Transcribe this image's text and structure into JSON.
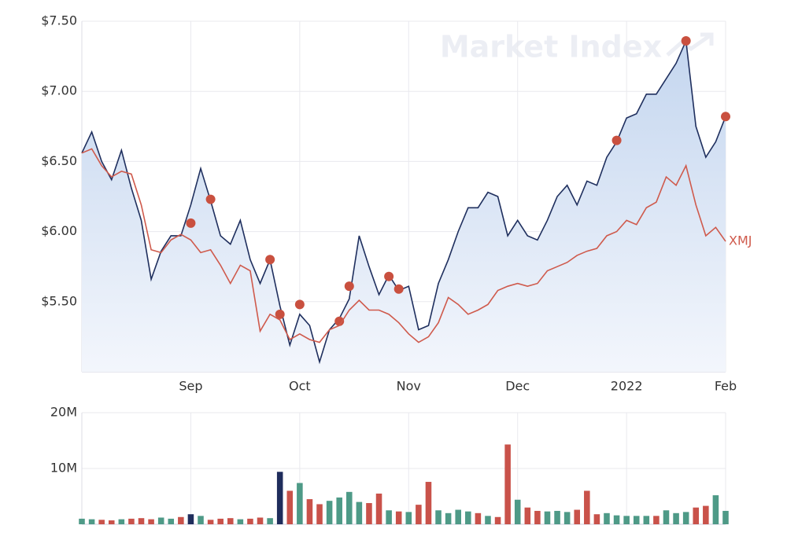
{
  "chart_data": [
    {
      "type": "line",
      "watermark": "Market Index",
      "categories": [
        null,
        null,
        null,
        null,
        null,
        null,
        null,
        null,
        null,
        null,
        null,
        "Sep",
        null,
        null,
        null,
        null,
        null,
        null,
        null,
        null,
        null,
        null,
        "Oct",
        null,
        null,
        null,
        null,
        null,
        null,
        null,
        null,
        null,
        null,
        "Nov",
        null,
        null,
        null,
        null,
        null,
        null,
        null,
        null,
        null,
        null,
        "Dec",
        null,
        null,
        null,
        null,
        null,
        null,
        null,
        null,
        null,
        null,
        "2022",
        null,
        null,
        null,
        null,
        null,
        null,
        null,
        null,
        null,
        "Feb"
      ],
      "series": [
        {
          "color": "#1f2f5e",
          "area": true,
          "values": [
            6.56,
            6.71,
            6.5,
            6.37,
            6.58,
            6.31,
            6.08,
            5.66,
            5.86,
            5.97,
            5.97,
            6.19,
            6.45,
            6.22,
            5.97,
            5.91,
            6.08,
            5.8,
            5.63,
            5.8,
            5.47,
            5.19,
            5.41,
            5.33,
            5.07,
            5.3,
            5.38,
            5.52,
            5.97,
            5.75,
            5.55,
            5.69,
            5.58,
            5.61,
            5.3,
            5.33,
            5.63,
            5.8,
            6.0,
            6.17,
            6.17,
            6.28,
            6.25,
            5.97,
            6.08,
            5.97,
            5.94,
            6.08,
            6.25,
            6.33,
            6.19,
            6.36,
            6.33,
            6.53,
            6.64,
            6.81,
            6.84,
            6.98,
            6.98,
            7.09,
            7.2,
            7.36,
            6.75,
            6.53,
            6.64,
            6.82
          ]
        },
        {
          "color": "#c9503f",
          "style": "markers",
          "values": [
            null,
            null,
            null,
            null,
            null,
            null,
            null,
            null,
            null,
            null,
            null,
            6.06,
            null,
            6.23,
            null,
            null,
            null,
            null,
            null,
            5.8,
            5.41,
            null,
            5.48,
            null,
            null,
            null,
            5.36,
            5.61,
            null,
            null,
            null,
            5.68,
            5.59,
            null,
            null,
            null,
            null,
            null,
            null,
            null,
            null,
            null,
            null,
            null,
            null,
            null,
            null,
            null,
            null,
            null,
            null,
            null,
            null,
            null,
            6.65,
            null,
            null,
            null,
            null,
            null,
            null,
            7.36,
            null,
            null,
            null,
            6.82
          ]
        },
        {
          "name": "XMJ",
          "color": "#cf5a4c",
          "values": [
            6.56,
            6.59,
            6.47,
            6.39,
            6.43,
            6.41,
            6.19,
            5.87,
            5.85,
            5.94,
            5.98,
            5.94,
            5.85,
            5.87,
            5.76,
            5.63,
            5.76,
            5.72,
            5.29,
            5.41,
            5.37,
            5.23,
            5.27,
            5.23,
            5.21,
            5.3,
            5.33,
            5.44,
            5.51,
            5.44,
            5.44,
            5.41,
            5.35,
            5.27,
            5.21,
            5.25,
            5.35,
            5.53,
            5.48,
            5.41,
            5.44,
            5.48,
            5.58,
            5.61,
            5.63,
            5.61,
            5.63,
            5.72,
            5.75,
            5.78,
            5.83,
            5.86,
            5.88,
            5.97,
            6.0,
            6.08,
            6.05,
            6.17,
            6.21,
            6.39,
            6.33,
            6.47,
            6.19,
            5.97,
            6.03,
            5.93
          ]
        }
      ],
      "ylim": [
        5.0,
        7.5
      ],
      "yticks": [
        {
          "value": 5.5,
          "label": "$5.50"
        },
        {
          "value": 6.0,
          "label": "$6.00"
        },
        {
          "value": 6.5,
          "label": "$6.50"
        },
        {
          "value": 7.0,
          "label": "$7.00"
        },
        {
          "value": 7.5,
          "label": "$7.50"
        }
      ],
      "grid": true
    },
    {
      "type": "bar",
      "values": [
        1000000,
        900000,
        800000,
        700000,
        900000,
        1000000,
        1100000,
        900000,
        1200000,
        1000000,
        1300000,
        1800000,
        1500000,
        800000,
        1000000,
        1100000,
        900000,
        1000000,
        1200000,
        1100000,
        9400000,
        6000000,
        7400000,
        4500000,
        3600000,
        4200000,
        4800000,
        5800000,
        4000000,
        3800000,
        5500000,
        2500000,
        2300000,
        2200000,
        3500000,
        7600000,
        2500000,
        2000000,
        2600000,
        2300000,
        2000000,
        1500000,
        1300000,
        14300000,
        4400000,
        3000000,
        2400000,
        2300000,
        2400000,
        2200000,
        2600000,
        6000000,
        1800000,
        2000000,
        1600000,
        1500000,
        1500000,
        1500000,
        1500000,
        2500000,
        2000000,
        2200000,
        3000000,
        3300000,
        5200000,
        2400000
      ],
      "colors": [
        "#4e9a87",
        "#4e9a87",
        "#c9524a",
        "#c9524a",
        "#4e9a87",
        "#c9524a",
        "#c9524a",
        "#c9524a",
        "#4e9a87",
        "#4e9a87",
        "#c9524a",
        "#1f2d5c",
        "#4e9a87",
        "#c9524a",
        "#c9524a",
        "#c9524a",
        "#4e9a87",
        "#c9524a",
        "#c9524a",
        "#4e9a87",
        "#1f2d5c",
        "#c9524a",
        "#4e9a87",
        "#c9524a",
        "#c9524a",
        "#4e9a87",
        "#4e9a87",
        "#4e9a87",
        "#4e9a87",
        "#c9524a",
        "#c9524a",
        "#4e9a87",
        "#c9524a",
        "#4e9a87",
        "#c9524a",
        "#c9524a",
        "#4e9a87",
        "#4e9a87",
        "#4e9a87",
        "#4e9a87",
        "#c9524a",
        "#4e9a87",
        "#c9524a",
        "#c9524a",
        "#4e9a87",
        "#c9524a",
        "#c9524a",
        "#4e9a87",
        "#4e9a87",
        "#4e9a87",
        "#c9524a",
        "#c9524a",
        "#c9524a",
        "#4e9a87",
        "#4e9a87",
        "#4e9a87",
        "#4e9a87",
        "#4e9a87",
        "#c9524a",
        "#4e9a87",
        "#4e9a87",
        "#4e9a87",
        "#c9524a",
        "#c9524a",
        "#4e9a87",
        "#4e9a87"
      ],
      "ylim": [
        0,
        20000000
      ],
      "yticks": [
        {
          "value": 10000000,
          "label": "10M"
        },
        {
          "value": 20000000,
          "label": "20M"
        }
      ],
      "grid": true
    }
  ]
}
